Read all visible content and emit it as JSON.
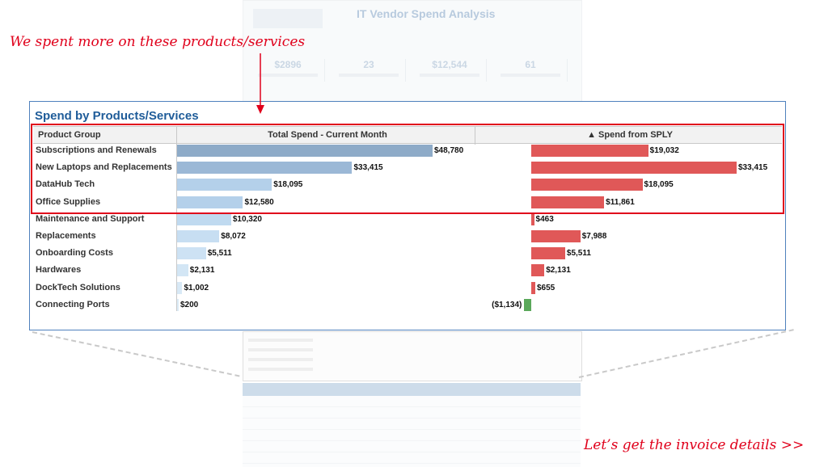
{
  "annotations": {
    "top": "We spent more on these products/services",
    "bottom": "Let’s get the invoice details >>"
  },
  "background_dashboard": {
    "title": "IT Vendor Spend Analysis",
    "kpis": [
      "$2896",
      "23",
      "$12,544",
      "61"
    ]
  },
  "panel": {
    "title": "Spend by Products/Services",
    "col_product": "Product Group",
    "col_total": "Total Spend - Current Month",
    "col_sply": "▲ Spend from SPLY"
  },
  "colors": {
    "highlight_red": "#e0001b",
    "title_blue": "#1f5c99",
    "positive_bar": "#e05858",
    "negative_bar": "#5aa85a"
  },
  "chart_data": {
    "type": "bar",
    "categories": [
      "Subscriptions and Renewals",
      "New Laptops and Replacements",
      "DataHub Tech",
      "Office Supplies",
      "Maintenance and Support",
      "Replacements",
      "Onboarding Costs",
      "Hardwares",
      "DockTech Solutions",
      "Connecting Ports"
    ],
    "series": [
      {
        "name": "Total Spend - Current Month",
        "values": [
          48780,
          33415,
          18095,
          12580,
          10320,
          8072,
          5511,
          2131,
          1002,
          200
        ],
        "labels": [
          "$48,780",
          "$33,415",
          "$18,095",
          "$12,580",
          "$10,320",
          "$8,072",
          "$5,511",
          "$2,131",
          "$1,002",
          "$200"
        ]
      },
      {
        "name": "▲ Spend from SPLY",
        "values": [
          19032,
          33415,
          18095,
          11861,
          463,
          7988,
          5511,
          2131,
          655,
          -1134
        ],
        "labels": [
          "$19,032",
          "$33,415",
          "$18,095",
          "$11,861",
          "$463",
          "$7,988",
          "$5,511",
          "$2,131",
          "$655",
          "($1,134)"
        ]
      }
    ],
    "highlighted_categories": [
      "Subscriptions and Renewals",
      "New Laptops and Replacements",
      "DataHub Tech",
      "Office Supplies"
    ],
    "bar_colors_total": [
      "#8eabc8",
      "#9bb8d6",
      "#b4d0ea",
      "#b4d0ea",
      "#c0daf0",
      "#c7def2",
      "#cde2f4",
      "#d3e6f5",
      "#d8e9f6",
      "#dcecf7"
    ]
  }
}
